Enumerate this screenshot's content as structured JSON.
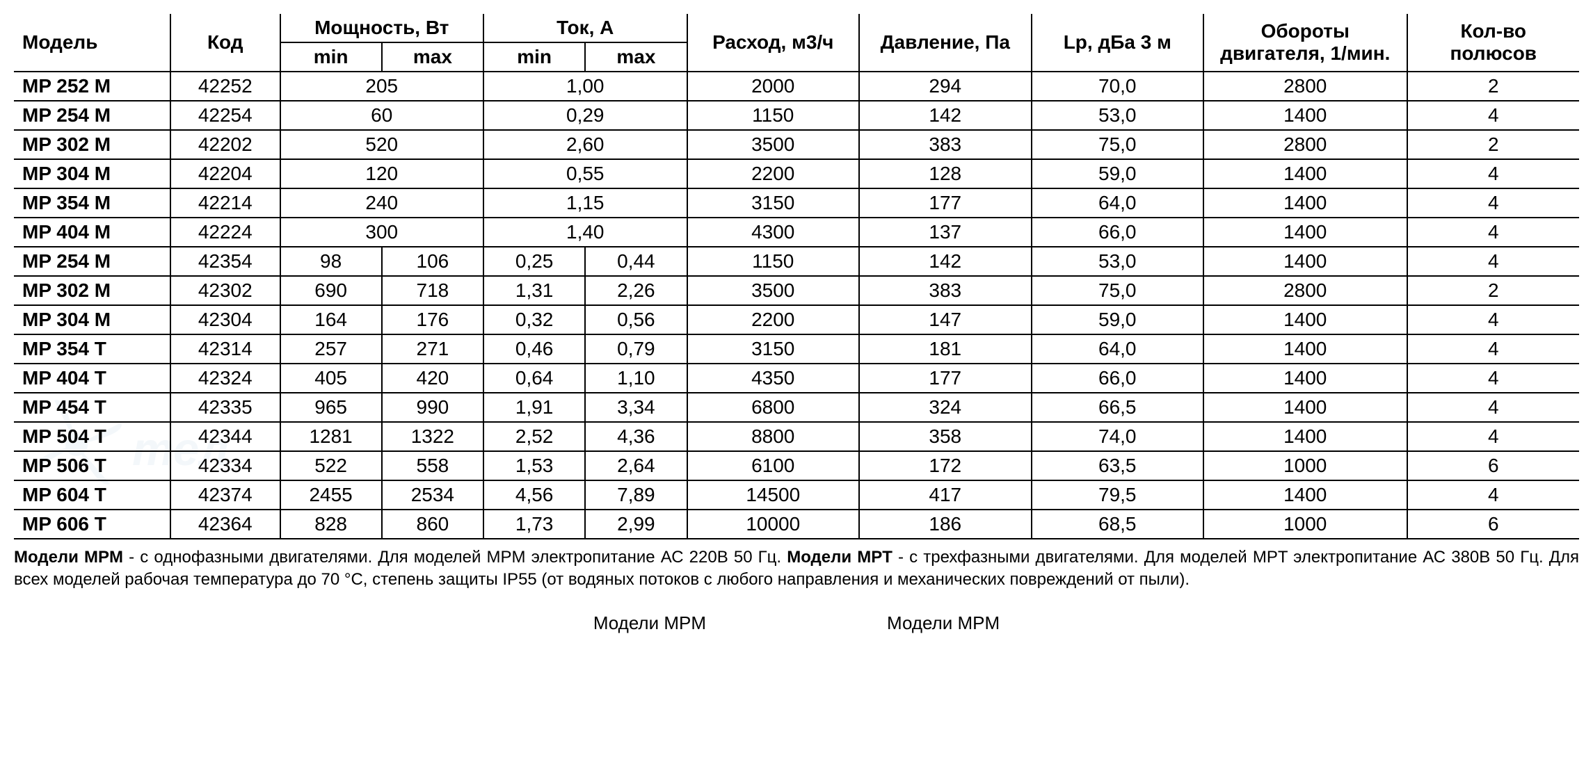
{
  "table": {
    "type": "table",
    "colors": {
      "text": "#000000",
      "background": "#ffffff",
      "border": "#000000",
      "watermark": "#6fa3c7"
    },
    "fontsize": {
      "header": 28,
      "body": 28,
      "footnote": 24
    },
    "columns": {
      "model": {
        "label": "Модель",
        "width_pct": 10,
        "align": "left"
      },
      "code": {
        "label": "Код",
        "width_pct": 7,
        "align": "center"
      },
      "power": {
        "label": "Мощность, Вт",
        "sub_min": "min",
        "sub_max": "max",
        "width_pct": 13,
        "align": "center"
      },
      "current": {
        "label": "Ток, А",
        "sub_min": "min",
        "sub_max": "max",
        "width_pct": 13,
        "align": "center"
      },
      "flow": {
        "label": "Расход, м3/ч",
        "width_pct": 11,
        "align": "center"
      },
      "pressure": {
        "label": "Давление, Па",
        "width_pct": 11,
        "align": "center"
      },
      "lp": {
        "label": "Lp, дБа 3 м",
        "width_pct": 11,
        "align": "center"
      },
      "rpm": {
        "label": "Обороты двигателя, 1/мин.",
        "width_pct": 13,
        "align": "center"
      },
      "poles": {
        "label": "Кол-во полюсов",
        "width_pct": 11,
        "align": "center"
      }
    },
    "rows": [
      {
        "model": "MP 252 M",
        "code": "42252",
        "power_min": "205",
        "power_span": true,
        "curr_min": "1,00",
        "curr_span": true,
        "flow": "2000",
        "pressure": "294",
        "lp": "70,0",
        "rpm": "2800",
        "poles": "2"
      },
      {
        "model": "MP 254 M",
        "code": "42254",
        "power_min": "60",
        "power_span": true,
        "curr_min": "0,29",
        "curr_span": true,
        "flow": "1150",
        "pressure": "142",
        "lp": "53,0",
        "rpm": "1400",
        "poles": "4"
      },
      {
        "model": "MP 302 M",
        "code": "42202",
        "power_min": "520",
        "power_span": true,
        "curr_min": "2,60",
        "curr_span": true,
        "flow": "3500",
        "pressure": "383",
        "lp": "75,0",
        "rpm": "2800",
        "poles": "2"
      },
      {
        "model": "MP 304 M",
        "code": "42204",
        "power_min": "120",
        "power_span": true,
        "curr_min": "0,55",
        "curr_span": true,
        "flow": "2200",
        "pressure": "128",
        "lp": "59,0",
        "rpm": "1400",
        "poles": "4"
      },
      {
        "model": "MP 354 M",
        "code": "42214",
        "power_min": "240",
        "power_span": true,
        "curr_min": "1,15",
        "curr_span": true,
        "flow": "3150",
        "pressure": "177",
        "lp": "64,0",
        "rpm": "1400",
        "poles": "4"
      },
      {
        "model": "MP 404 M",
        "code": "42224",
        "power_min": "300",
        "power_span": true,
        "curr_min": "1,40",
        "curr_span": true,
        "flow": "4300",
        "pressure": "137",
        "lp": "66,0",
        "rpm": "1400",
        "poles": "4"
      },
      {
        "model": "MP 254 M",
        "code": "42354",
        "power_min": "98",
        "power_max": "106",
        "curr_min": "0,25",
        "curr_max": "0,44",
        "flow": "1150",
        "pressure": "142",
        "lp": "53,0",
        "rpm": "1400",
        "poles": "4"
      },
      {
        "model": "MP 302 M",
        "code": "42302",
        "power_min": "690",
        "power_max": "718",
        "curr_min": "1,31",
        "curr_max": "2,26",
        "flow": "3500",
        "pressure": "383",
        "lp": "75,0",
        "rpm": "2800",
        "poles": "2"
      },
      {
        "model": "MP 304 M",
        "code": "42304",
        "power_min": "164",
        "power_max": "176",
        "curr_min": "0,32",
        "curr_max": "0,56",
        "flow": "2200",
        "pressure": "147",
        "lp": "59,0",
        "rpm": "1400",
        "poles": "4"
      },
      {
        "model": "MP 354 T",
        "code": "42314",
        "power_min": "257",
        "power_max": "271",
        "curr_min": "0,46",
        "curr_max": "0,79",
        "flow": "3150",
        "pressure": "181",
        "lp": "64,0",
        "rpm": "1400",
        "poles": "4"
      },
      {
        "model": "MP 404 T",
        "code": "42324",
        "power_min": "405",
        "power_max": "420",
        "curr_min": "0,64",
        "curr_max": "1,10",
        "flow": "4350",
        "pressure": "177",
        "lp": "66,0",
        "rpm": "1400",
        "poles": "4"
      },
      {
        "model": "MP 454 T",
        "code": "42335",
        "power_min": "965",
        "power_max": "990",
        "curr_min": "1,91",
        "curr_max": "3,34",
        "flow": "6800",
        "pressure": "324",
        "lp": "66,5",
        "rpm": "1400",
        "poles": "4"
      },
      {
        "model": "MP 504 T",
        "code": "42344",
        "power_min": "1281",
        "power_max": "1322",
        "curr_min": "2,52",
        "curr_max": "4,36",
        "flow": "8800",
        "pressure": "358",
        "lp": "74,0",
        "rpm": "1400",
        "poles": "4"
      },
      {
        "model": "MP 506 T",
        "code": "42334",
        "power_min": "522",
        "power_max": "558",
        "curr_min": "1,53",
        "curr_max": "2,64",
        "flow": "6100",
        "pressure": "172",
        "lp": "63,5",
        "rpm": "1000",
        "poles": "6"
      },
      {
        "model": "MP 604 T",
        "code": "42374",
        "power_min": "2455",
        "power_max": "2534",
        "curr_min": "4,56",
        "curr_max": "7,89",
        "flow": "14500",
        "pressure": "417",
        "lp": "79,5",
        "rpm": "1400",
        "poles": "4"
      },
      {
        "model": "MP 606 T",
        "code": "42364",
        "power_min": "828",
        "power_max": "860",
        "curr_min": "1,73",
        "curr_max": "2,99",
        "flow": "10000",
        "pressure": "186",
        "lp": "68,5",
        "rpm": "1000",
        "poles": "6"
      }
    ]
  },
  "footnote": {
    "b1": "Модели MPM",
    "t1": " - с однофазными двигателями. Для моделей MPM электропитание АС 220В 50 Гц. ",
    "b2": "Модели MPT",
    "t2": " - с трехфазными двигателями. Для моделей MPT электропитание АС 380В 50 Гц. Для всех моделей рабочая температура до 70 °С, степень защиты IP55 (от водяных потоков с любого направления и механических повреждений от пыли)."
  },
  "below": {
    "left": "Модели MPM",
    "right": "Модели MPM"
  }
}
